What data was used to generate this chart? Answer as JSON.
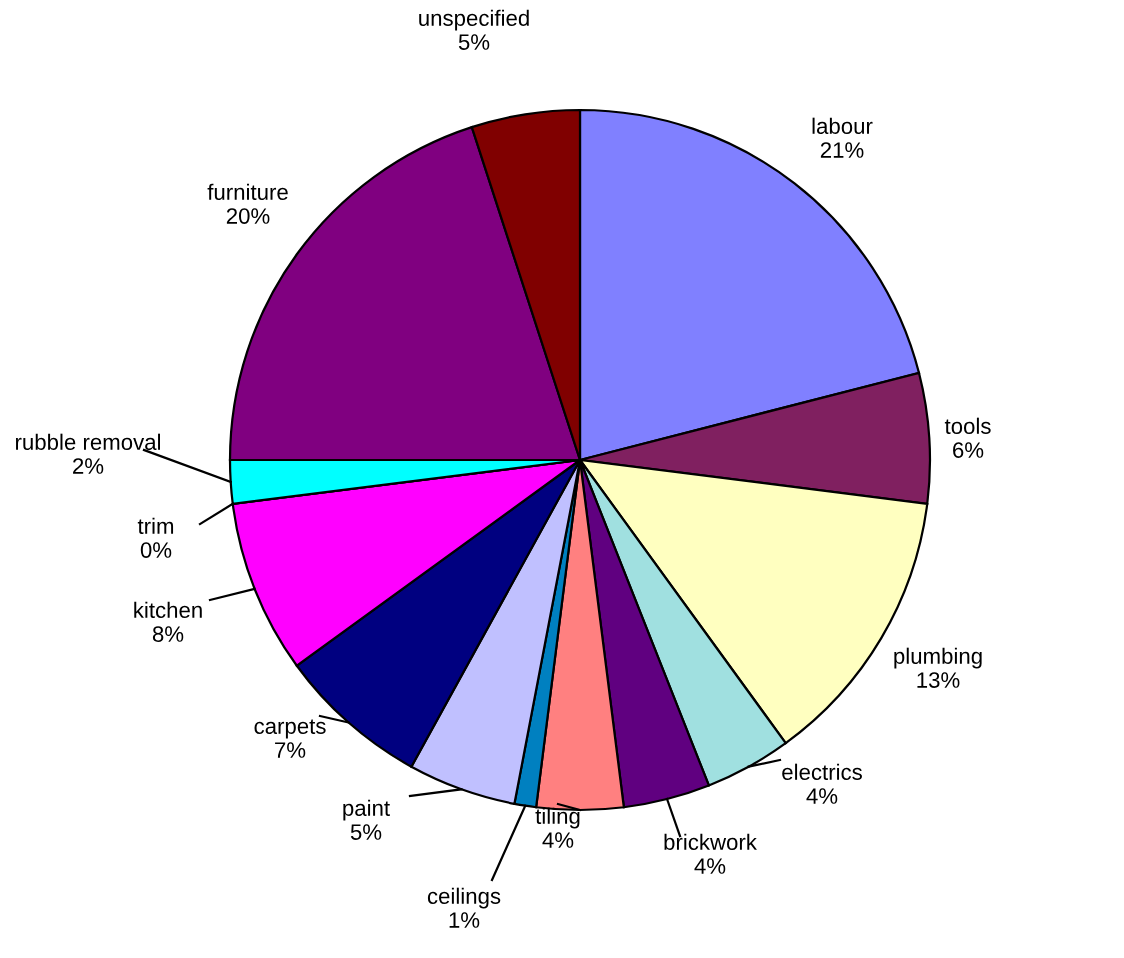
{
  "chart_data": {
    "type": "pie",
    "categories": [
      "labour",
      "tools",
      "plumbing",
      "electrics",
      "brickwork",
      "tiling",
      "ceilings",
      "paint",
      "carpets",
      "kitchen",
      "trim",
      "rubble removal",
      "furniture",
      "unspecified"
    ],
    "values": [
      21,
      6,
      13,
      4,
      4,
      4,
      1,
      5,
      7,
      8,
      0,
      2,
      20,
      5
    ],
    "value_labels": [
      "21%",
      "6%",
      "13%",
      "4%",
      "4%",
      "4%",
      "1%",
      "5%",
      "7%",
      "8%",
      "0%",
      "2%",
      "20%",
      "5%"
    ],
    "colors": [
      "#8080ff",
      "#802060",
      "#ffffc0",
      "#a0e0e0",
      "#600080",
      "#ff8080",
      "#0080c0",
      "#c0c0ff",
      "#000080",
      "#ff00ff",
      "#ffff00",
      "#00ffff",
      "#800080",
      "#800000"
    ]
  }
}
